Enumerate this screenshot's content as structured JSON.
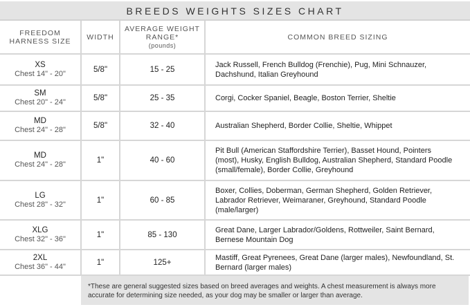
{
  "title": "BREEDS WEIGHTS SIZES CHART",
  "headers": {
    "size": "FREEDOM HARNESS SIZE",
    "width": "WIDTH",
    "weight": "AVERAGE WEIGHT RANGE*",
    "weight_unit": "(pounds)",
    "breeds": "COMMON BREED SIZING"
  },
  "rows": [
    {
      "size": "XS",
      "chest": "Chest 14\" - 20\"",
      "width": "5/8\"",
      "weight": "15 - 25",
      "breeds": "Jack Russell, French Bulldog (Frenchie), Pug, Mini Schnauzer, Dachshund, Italian Greyhound"
    },
    {
      "size": "SM",
      "chest": "Chest 20\" - 24\"",
      "width": "5/8\"",
      "weight": "25 - 35",
      "breeds": "Corgi, Cocker Spaniel, Beagle, Boston Terrier, Sheltie"
    },
    {
      "size": "MD",
      "chest": "Chest 24\" - 28\"",
      "width": "5/8\"",
      "weight": "32 - 40",
      "breeds": "Australian Shepherd, Border Collie, Sheltie, Whippet"
    },
    {
      "size": "MD",
      "chest": "Chest 24\" - 28\"",
      "width": "1\"",
      "weight": "40 - 60",
      "breeds": "Pit Bull (American Staffordshire Terrier), Basset Hound, Pointers (most), Husky, English Bulldog, Australian Shepherd, Standard Poodle (small/female), Border Collie, Greyhound"
    },
    {
      "size": "LG",
      "chest": "Chest 28\" - 32\"",
      "width": "1\"",
      "weight": "60 - 85",
      "breeds": "Boxer, Collies, Doberman, German Shepherd, Golden Retriever, Labrador Retriever, Weimaraner, Greyhound, Standard Poodle (male/larger)"
    },
    {
      "size": "XLG",
      "chest": "Chest 32\" - 36\"",
      "width": "1\"",
      "weight": "85 - 130",
      "breeds": "Great Dane, Larger Labrador/Goldens, Rottweiler, Saint Bernard, Bernese Mountain Dog"
    },
    {
      "size": "2XL",
      "chest": "Chest 36\" - 44\"",
      "width": "1\"",
      "weight": "125+",
      "breeds": "Mastiff, Great Pyrenees, Great Dane (larger males), Newfoundland, St. Bernard (larger males)"
    }
  ],
  "footnote": "*These are general suggested sizes based on breed averages and weights.  A chest measurement is always more accurate for determining size needed, as your dog may be smaller or larger than average."
}
